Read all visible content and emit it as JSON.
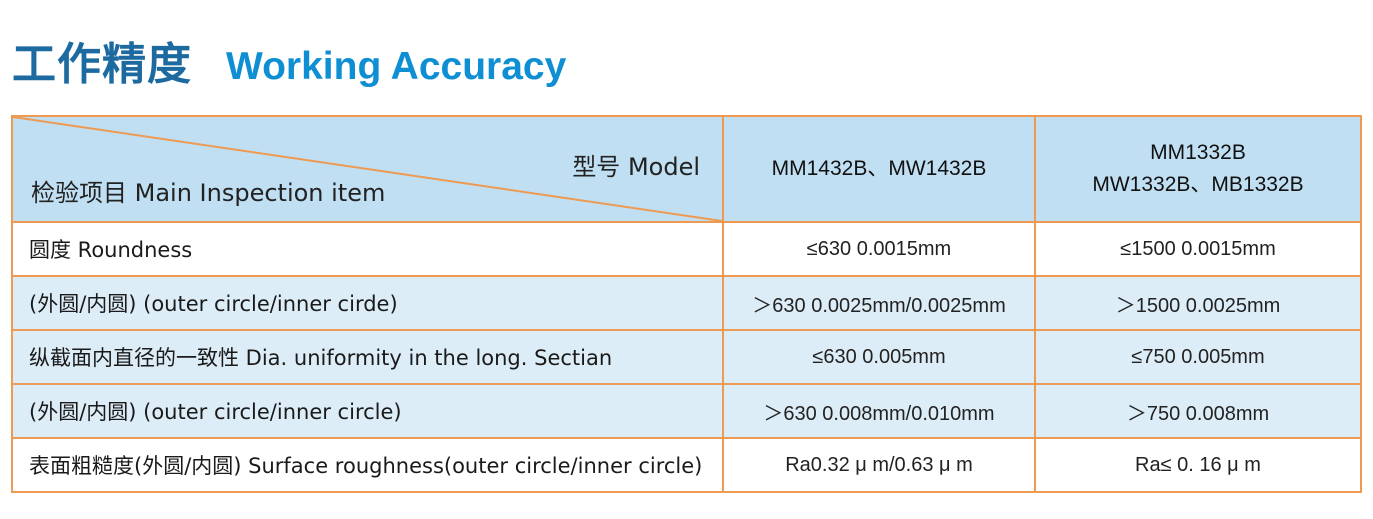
{
  "title": {
    "cn": "工作精度",
    "en": "Working Accuracy"
  },
  "table": {
    "header": {
      "model_label": "型号 Model",
      "item_label": "检验项目 Main Inspection item",
      "col1": "MM1432B、MW1432B",
      "col2_line1": "MM1332B",
      "col2_line2": "MW1332B、MB1332B"
    },
    "rows": [
      {
        "item": "圆度 Roundness",
        "col1": "≤630  0.0015mm",
        "col2": "≤1500  0.0015mm"
      },
      {
        "item": "(外圆/内圆) (outer circle/inner cirde)",
        "col1": "＞630  0.0025mm/0.0025mm",
        "col2": "＞1500  0.0025mm"
      },
      {
        "item": "纵截面内直径的一致性 Dia. uniformity in the long. Sectian",
        "col1": "≤630  0.005mm",
        "col2": "≤750  0.005mm"
      },
      {
        "item": "(外圆/内圆) (outer circle/inner circle)",
        "col1": "＞630  0.008mm/0.010mm",
        "col2": "＞750  0.008mm"
      },
      {
        "item": "表面粗糙度(外圆/内圆) Surface roughness(outer circle/inner circle)",
        "col1": "Ra0.32 μ m/0.63 μ m",
        "col2": "Ra≤ 0. 16 μ m"
      }
    ]
  },
  "colors": {
    "title_cn": "#1d6aa0",
    "title_en": "#0f8fd3",
    "header_bg": "#c0dff2",
    "row_blue_bg": "#ddedf8",
    "border": "#ee9a52"
  }
}
